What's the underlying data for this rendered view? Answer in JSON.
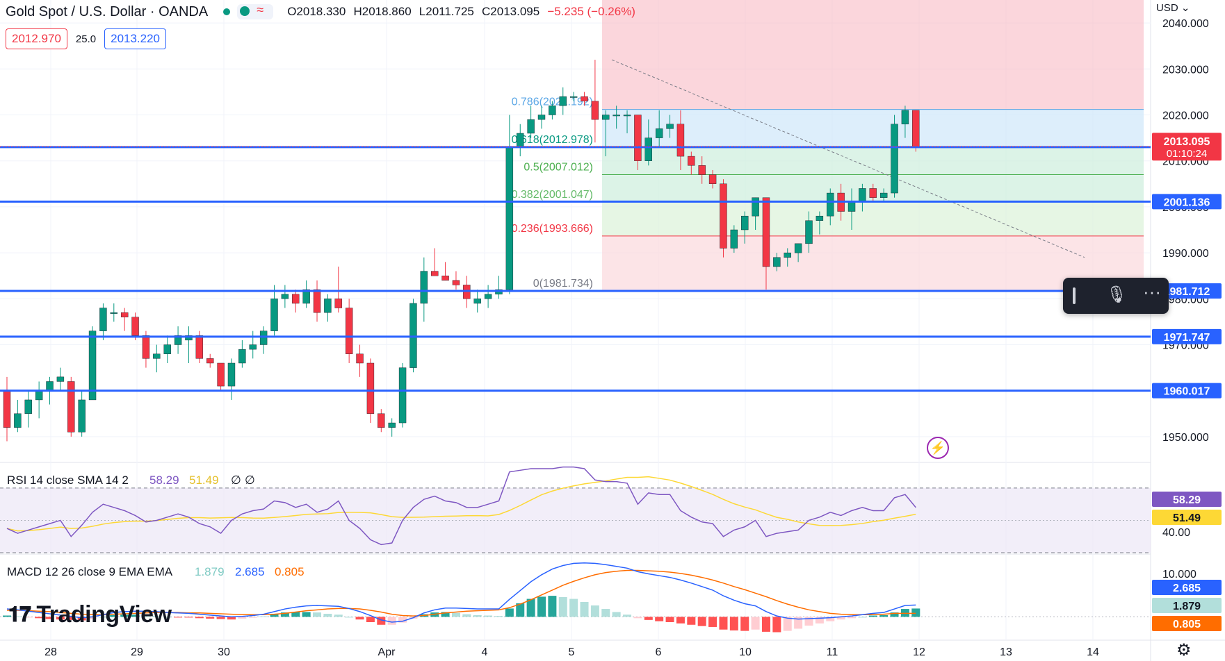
{
  "header": {
    "symbol": "Gold Spot / U.S. Dollar · OANDA",
    "open": "O2018.330",
    "high": "H2018.860",
    "low": "L2011.725",
    "close": "C2013.095",
    "change": "−5.235 (−0.26%)"
  },
  "quote": {
    "sell": "2012.970",
    "spread": "25.0",
    "buy": "2013.220"
  },
  "currency": "USD",
  "brand": "TradingView",
  "colors": {
    "up": "#089981",
    "down": "#f23645",
    "level_line": "#2962ff",
    "rsi": "#7e57c2",
    "rsi_sma": "#fdd835",
    "macd": "#2962ff",
    "signal": "#ff6d00"
  },
  "icons": {
    "mic": "microphone-icon",
    "more": "more-dots-icon",
    "settings": "gear-icon",
    "bolt": "lightning-icon"
  },
  "chart_data": {
    "type": "candlestick",
    "title": "Gold Spot / U.S. Dollar · OANDA",
    "ylim": [
      1945,
      2045
    ],
    "y_ticks": [
      1950,
      1960,
      1970,
      1980,
      1990,
      2000,
      2010,
      2020,
      2030,
      2040
    ],
    "x_tick_labels": [
      "28",
      "29",
      "30",
      "Apr",
      "4",
      "5",
      "6",
      "10",
      "11",
      "12",
      "13",
      "14"
    ],
    "candles": [
      [
        1960,
        1963,
        1949,
        1952
      ],
      [
        1952,
        1958,
        1951,
        1955
      ],
      [
        1955,
        1960,
        1952,
        1958
      ],
      [
        1958,
        1962,
        1954,
        1960
      ],
      [
        1960,
        1963,
        1957,
        1962
      ],
      [
        1962,
        1965,
        1960,
        1963
      ],
      [
        1962,
        1963,
        1950,
        1951
      ],
      [
        1951,
        1960,
        1950,
        1958
      ],
      [
        1958,
        1974,
        1958,
        1973
      ],
      [
        1973,
        1979,
        1971,
        1978
      ],
      [
        1977,
        1979,
        1975,
        1977
      ],
      [
        1977,
        1978,
        1973,
        1976
      ],
      [
        1976,
        1977,
        1971,
        1972
      ],
      [
        1972,
        1973,
        1965,
        1967
      ],
      [
        1967,
        1970,
        1964,
        1968
      ],
      [
        1968,
        1972,
        1966,
        1970
      ],
      [
        1970,
        1974,
        1968,
        1972
      ],
      [
        1971,
        1974,
        1966,
        1972
      ],
      [
        1972,
        1973,
        1966,
        1967
      ],
      [
        1967,
        1968,
        1965,
        1966
      ],
      [
        1966,
        1966,
        1960,
        1961
      ],
      [
        1961,
        1967,
        1958,
        1966
      ],
      [
        1966,
        1971,
        1965,
        1969
      ],
      [
        1969,
        1973,
        1967,
        1970
      ],
      [
        1970,
        1974,
        1968,
        1973
      ],
      [
        1973,
        1983,
        1972,
        1980
      ],
      [
        1980,
        1983,
        1978,
        1981
      ],
      [
        1981,
        1982,
        1977,
        1979
      ],
      [
        1979,
        1984,
        1978,
        1982
      ],
      [
        1982,
        1984,
        1975,
        1977
      ],
      [
        1977,
        1981,
        1975,
        1980
      ],
      [
        1980,
        1987,
        1977,
        1978
      ],
      [
        1978,
        1980,
        1966,
        1968
      ],
      [
        1968,
        1970,
        1963,
        1966
      ],
      [
        1966,
        1967,
        1953,
        1955
      ],
      [
        1955,
        1956,
        1951,
        1952
      ],
      [
        1952,
        1954,
        1950,
        1953
      ],
      [
        1953,
        1966,
        1952,
        1965
      ],
      [
        1965,
        1980,
        1964,
        1979
      ],
      [
        1979,
        1989,
        1975,
        1986
      ],
      [
        1986,
        1991,
        1985,
        1985
      ],
      [
        1985,
        1988,
        1984,
        1984
      ],
      [
        1984,
        1986,
        1982,
        1983
      ],
      [
        1983,
        1985,
        1978,
        1980
      ],
      [
        1979,
        1982,
        1977,
        1980
      ],
      [
        1980,
        1983,
        1978,
        1981
      ],
      [
        1981,
        1985,
        1980,
        1982
      ],
      [
        1982,
        2020,
        1981,
        2013
      ],
      [
        2013,
        2018,
        2011,
        2016
      ],
      [
        2016,
        2022,
        2015,
        2019
      ],
      [
        2019,
        2022,
        2017,
        2020
      ],
      [
        2020,
        2023,
        2019,
        2022
      ],
      [
        2022,
        2026,
        2020,
        2024
      ],
      [
        2024,
        2025,
        2023,
        2024
      ],
      [
        2024,
        2025,
        2022,
        2023
      ],
      [
        2023,
        2032,
        2014,
        2019
      ],
      [
        2019,
        2021,
        2011,
        2020
      ],
      [
        2020,
        2022,
        2017,
        2020
      ],
      [
        2020,
        2021,
        2016,
        2020
      ],
      [
        2020,
        2020,
        2008,
        2010
      ],
      [
        2010,
        2019,
        2009,
        2015
      ],
      [
        2015,
        2021,
        2013,
        2017
      ],
      [
        2017,
        2020,
        2015,
        2018
      ],
      [
        2018,
        2021,
        2008,
        2011
      ],
      [
        2011,
        2012,
        2007,
        2009
      ],
      [
        2009,
        2011,
        2005,
        2007
      ],
      [
        2007,
        2008,
        2004,
        2005
      ],
      [
        2005,
        2006,
        1989,
        1991
      ],
      [
        1991,
        1996,
        1990,
        1995
      ],
      [
        1995,
        1999,
        1992,
        1998
      ],
      [
        1998,
        2002,
        1995,
        2002
      ],
      [
        2002,
        2002,
        1982,
        1987
      ],
      [
        1987,
        1990,
        1986,
        1989
      ],
      [
        1989,
        1991,
        1987,
        1990
      ],
      [
        1990,
        1992,
        1988,
        1992
      ],
      [
        1992,
        1999,
        1990,
        1997
      ],
      [
        1997,
        1999,
        1994,
        1998
      ],
      [
        1998,
        2004,
        1996,
        2003
      ],
      [
        2003,
        2005,
        1997,
        1999
      ],
      [
        1999,
        2004,
        1995,
        2001
      ],
      [
        2001,
        2005,
        1999,
        2004
      ],
      [
        2004,
        2005,
        2001,
        2002
      ],
      [
        2002,
        2004,
        2001,
        2003
      ],
      [
        2003,
        2020,
        2002,
        2018
      ],
      [
        2018,
        2022,
        2015,
        2021
      ],
      [
        2021,
        2021,
        2012,
        2013
      ]
    ],
    "horizontal_levels": [
      {
        "value": 2012.992,
        "label": "2012.992"
      },
      {
        "value": 2001.136,
        "label": "2001.136"
      },
      {
        "value": 1981.712,
        "label": "1981.712"
      },
      {
        "value": 1971.747,
        "label": "1971.747"
      },
      {
        "value": 1960.017,
        "label": "1960.017"
      }
    ],
    "last_price": {
      "value": 2013.095,
      "label": "2013.095",
      "countdown": "01:10:24"
    },
    "fibonacci": [
      {
        "ratio": "0.786",
        "value": 2021.192,
        "label": "0.786(2021.192)",
        "color": "#5ba7e6"
      },
      {
        "ratio": "0.618",
        "value": 2012.978,
        "label": "0.618(2012.978)",
        "color": "#089981"
      },
      {
        "ratio": "0.5",
        "value": 2007.012,
        "label": "0.5(2007.012)",
        "color": "#4caf50"
      },
      {
        "ratio": "0.382",
        "value": 2001.047,
        "label": "0.382(2001.047)",
        "color": "#66bb6a"
      },
      {
        "ratio": "0.236",
        "value": 1993.666,
        "label": "0.236(1993.666)",
        "color": "#f23645"
      },
      {
        "ratio": "0",
        "value": 1981.734,
        "label": "0(1981.734)",
        "color": "#787b86"
      }
    ],
    "rsi": {
      "label": "RSI 14 close SMA 14 2",
      "value": "58.29",
      "sma": "51.49",
      "extra": [
        "∅",
        "∅"
      ],
      "ylim": [
        30,
        85
      ],
      "y_tick": "40.00",
      "bands": [
        70,
        30
      ],
      "values": [
        45,
        42,
        44,
        46,
        48,
        50,
        40,
        47,
        55,
        60,
        58,
        56,
        53,
        49,
        50,
        52,
        54,
        52,
        48,
        46,
        42,
        50,
        54,
        56,
        57,
        62,
        61,
        58,
        60,
        55,
        57,
        62,
        50,
        45,
        38,
        35,
        36,
        50,
        58,
        63,
        65,
        62,
        61,
        58,
        58,
        60,
        62,
        80,
        81,
        82,
        82,
        82,
        83,
        83,
        82,
        75,
        74,
        74,
        73,
        60,
        67,
        66,
        66,
        56,
        52,
        49,
        48,
        40,
        44,
        46,
        50,
        40,
        42,
        43,
        44,
        50,
        52,
        55,
        53,
        56,
        58,
        56,
        56,
        64,
        66,
        58
      ]
    },
    "macd": {
      "label": "MACD 12 26 close 9 EMA EMA",
      "hist_value": "1.879",
      "macd_value": "2.685",
      "signal_value": "0.805",
      "ylim": [
        -5,
        14
      ],
      "y_tick": "10.000",
      "macd_line": [
        1.8,
        1.6,
        1.3,
        1.0,
        0.7,
        0.4,
        0.1,
        -0.2,
        0.0,
        0.5,
        1.0,
        1.2,
        1.3,
        1.3,
        1.2,
        1.0,
        0.9,
        0.8,
        0.6,
        0.4,
        0.2,
        0.0,
        0.1,
        0.3,
        0.6,
        1.2,
        1.8,
        2.2,
        2.5,
        2.6,
        2.5,
        2.4,
        1.9,
        1.2,
        0.3,
        -0.7,
        -1.2,
        -1.0,
        -0.2,
        0.9,
        1.6,
        2.0,
        2.0,
        1.9,
        1.8,
        1.8,
        1.8,
        4.0,
        6.0,
        8.0,
        9.6,
        10.9,
        11.7,
        12.2,
        12.3,
        12.2,
        11.9,
        11.5,
        11.1,
        10.3,
        9.8,
        9.4,
        9.0,
        8.4,
        7.7,
        6.9,
        6.1,
        4.8,
        3.8,
        3.0,
        2.5,
        1.2,
        0.2,
        -0.3,
        -0.5,
        -0.4,
        -0.3,
        -0.2,
        0.0,
        0.2,
        0.5,
        0.8,
        1.0,
        1.8,
        2.6,
        2.7
      ],
      "signal_line": [
        1.5,
        1.5,
        1.4,
        1.3,
        1.2,
        1.0,
        0.8,
        0.6,
        0.5,
        0.5,
        0.6,
        0.7,
        0.8,
        0.9,
        1.0,
        1.0,
        1.0,
        0.9,
        0.9,
        0.8,
        0.7,
        0.6,
        0.5,
        0.5,
        0.5,
        0.6,
        0.8,
        1.1,
        1.4,
        1.6,
        1.8,
        1.9,
        1.9,
        1.8,
        1.5,
        1.1,
        0.6,
        0.3,
        0.2,
        0.3,
        0.6,
        0.9,
        1.1,
        1.3,
        1.4,
        1.5,
        1.6,
        2.1,
        2.9,
        3.9,
        5.0,
        6.1,
        7.2,
        8.1,
        8.9,
        9.6,
        10.1,
        10.4,
        10.6,
        10.6,
        10.5,
        10.4,
        10.2,
        9.9,
        9.5,
        9.0,
        8.4,
        7.7,
        6.9,
        6.2,
        5.4,
        4.6,
        3.7,
        2.9,
        2.2,
        1.6,
        1.2,
        0.8,
        0.6,
        0.5,
        0.5,
        0.5,
        0.6,
        0.8,
        0.8,
        0.8
      ]
    }
  }
}
